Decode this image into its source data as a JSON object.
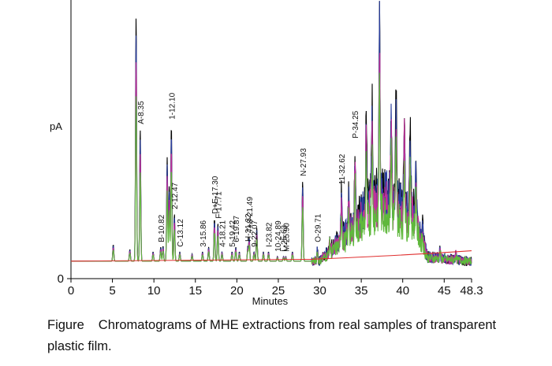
{
  "chart_data": {
    "type": "line",
    "title": "",
    "xlabel": "Minutes",
    "ylabel": "pA",
    "xlim": [
      0,
      48.3
    ],
    "ylim": [
      0,
      60
    ],
    "x_ticks": [
      "0",
      "5",
      "10",
      "15",
      "20",
      "25",
      "30",
      "35",
      "40",
      "45",
      "48.3"
    ],
    "y_ticks": [
      "0",
      "60"
    ],
    "series": [
      {
        "name": "",
        "color": "#000000"
      },
      {
        "name": "",
        "color": "#2b3f9e"
      },
      {
        "name": "",
        "color": "#c0309a"
      },
      {
        "name": "",
        "color": "#5fb83c"
      },
      {
        "name": "",
        "color": "#e03030"
      }
    ],
    "peaks": [
      {
        "label": "A-8.35",
        "x": 8.35,
        "y": 28
      },
      {
        "label": "B-10.82",
        "x": 10.82,
        "y": 3
      },
      {
        "label": "1-12.10",
        "x": 12.1,
        "y": 29
      },
      {
        "label": "2-12.47",
        "x": 12.47,
        "y": 10
      },
      {
        "label": "C-13.12",
        "x": 13.12,
        "y": 2
      },
      {
        "label": "3-15.86",
        "x": 15.86,
        "y": 2
      },
      {
        "label": "D+E-17.30",
        "x": 17.3,
        "y": 9
      },
      {
        "label": "F-17.71",
        "x": 17.71,
        "y": 8
      },
      {
        "label": "4-18.21",
        "x": 18.21,
        "y": 2
      },
      {
        "label": "5-19.42",
        "x": 19.42,
        "y": 2
      },
      {
        "label": "6-19.87",
        "x": 19.87,
        "y": 3
      },
      {
        "label": "H-21.32",
        "x": 21.32,
        "y": 3
      },
      {
        "label": "7+8-21.49",
        "x": 21.49,
        "y": 5
      },
      {
        "label": "I-23.82",
        "x": 23.82,
        "y": 2
      },
      {
        "label": "9-22.07",
        "x": 22.07,
        "y": 2
      },
      {
        "label": "10-24.89",
        "x": 24.89,
        "y": 1
      },
      {
        "label": "L-25.63",
        "x": 25.63,
        "y": 1
      },
      {
        "label": "M-25.90",
        "x": 25.9,
        "y": 1
      },
      {
        "label": "N-27.93",
        "x": 27.93,
        "y": 17
      },
      {
        "label": "O-29.71",
        "x": 29.71,
        "y": 3
      },
      {
        "label": "11-32.62",
        "x": 32.62,
        "y": 10
      },
      {
        "label": "P-34.25",
        "x": 34.25,
        "y": 16
      }
    ]
  },
  "caption": {
    "lead": "Figure",
    "text": "Chromatograms of MHE extractions from real samples of transparent plastic film."
  }
}
